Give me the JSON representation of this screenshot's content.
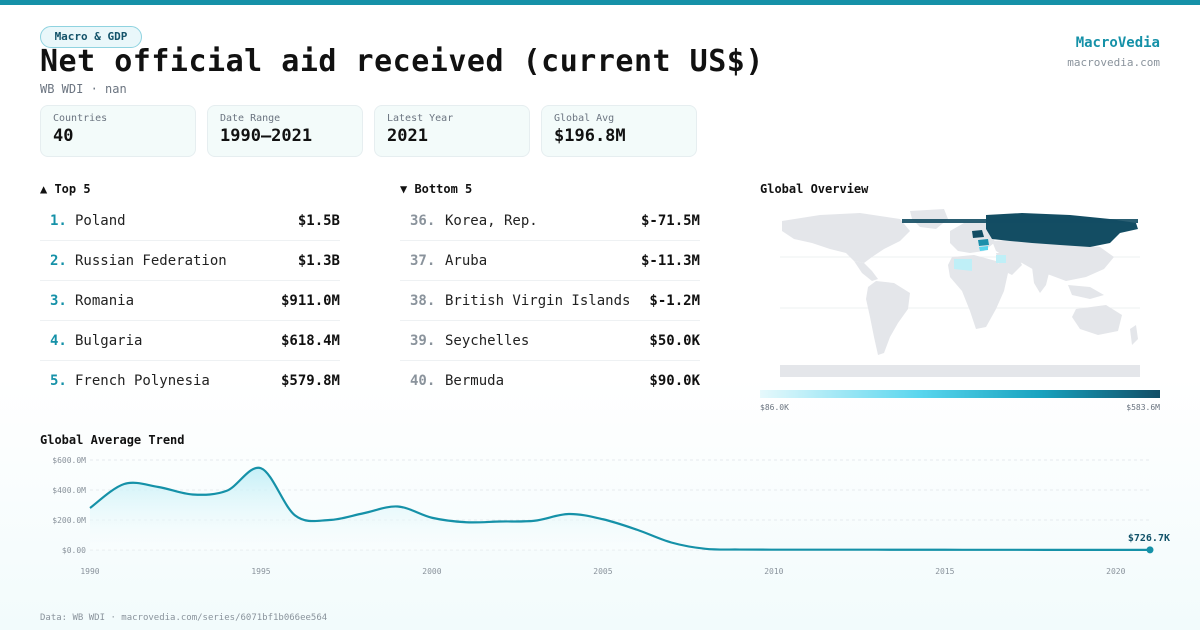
{
  "header": {
    "tag": "Macro & GDP",
    "title": "Net official aid received (current US$)",
    "subtitle": "WB WDI · nan",
    "brand": "MacroVedia",
    "brand_url": "macrovedia.com"
  },
  "stats": [
    {
      "label": "Countries",
      "value": "40"
    },
    {
      "label": "Date Range",
      "value": "1990–2021"
    },
    {
      "label": "Latest Year",
      "value": "2021"
    },
    {
      "label": "Global Avg",
      "value": "$196.8M"
    }
  ],
  "top5": {
    "heading": "▲ Top 5",
    "items": [
      {
        "rank": "1.",
        "name": "Poland",
        "value": "$1.5B"
      },
      {
        "rank": "2.",
        "name": "Russian Federation",
        "value": "$1.3B"
      },
      {
        "rank": "3.",
        "name": "Romania",
        "value": "$911.0M"
      },
      {
        "rank": "4.",
        "name": "Bulgaria",
        "value": "$618.4M"
      },
      {
        "rank": "5.",
        "name": "French Polynesia",
        "value": "$579.8M"
      }
    ]
  },
  "bottom5": {
    "heading": "▼ Bottom 5",
    "items": [
      {
        "rank": "36.",
        "name": "Korea, Rep.",
        "value": "$-71.5M"
      },
      {
        "rank": "37.",
        "name": "Aruba",
        "value": "$-11.3M"
      },
      {
        "rank": "38.",
        "name": "British Virgin Islands",
        "value": "$-1.2M"
      },
      {
        "rank": "39.",
        "name": "Seychelles",
        "value": "$50.0K"
      },
      {
        "rank": "40.",
        "name": "Bermuda",
        "value": "$90.0K"
      }
    ]
  },
  "map": {
    "heading": "Global Overview",
    "scale_min": "$86.0K",
    "scale_max": "$583.6M",
    "colors": {
      "land": "#e4e6ea",
      "high": "#134d63",
      "low": "#bfeff7",
      "mid": "#59d6ee"
    }
  },
  "chart_data": {
    "type": "area",
    "title": "Global Average Trend",
    "x": [
      1990,
      1991,
      1992,
      1993,
      1994,
      1995,
      1996,
      1997,
      1998,
      1999,
      2000,
      2001,
      2002,
      2003,
      2004,
      2005,
      2006,
      2007,
      2008,
      2009,
      2010,
      2011,
      2012,
      2013,
      2014,
      2015,
      2016,
      2017,
      2018,
      2019,
      2020,
      2021
    ],
    "y": [
      280,
      440,
      420,
      370,
      395,
      545,
      230,
      200,
      245,
      290,
      215,
      185,
      190,
      195,
      240,
      205,
      135,
      50,
      8,
      3,
      2,
      2,
      2,
      2,
      1.5,
      1.5,
      1.2,
      1.2,
      1,
      1,
      0.9,
      0.7267
    ],
    "ylim": [
      0,
      600
    ],
    "y_ticks": [
      "$0.00",
      "$200.0M",
      "$400.0M",
      "$600.0M"
    ],
    "y_tick_values": [
      0,
      200,
      400,
      600
    ],
    "x_ticks": [
      1990,
      1995,
      2000,
      2005,
      2010,
      2015,
      2020
    ],
    "last_label": "$726.7K",
    "grid": true,
    "colors": {
      "line": "#1591a8",
      "fill_top": "#bfeef6",
      "fill_bottom": "#ffffff"
    }
  },
  "footer": "Data: WB WDI · macrovedia.com/series/6071bf1b066ee564"
}
